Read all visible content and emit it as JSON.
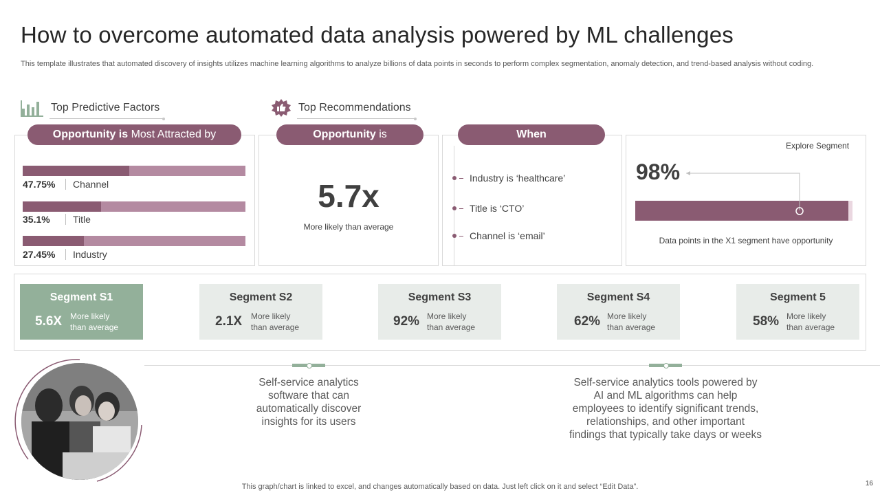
{
  "title": "How to overcome automated data analysis powered by ML challenges",
  "description": "This template illustrates that automated discovery of insights utilizes machine learning algorithms to analyze billions of data points in seconds to perform complex segmentation, anomaly detection, and trend-based analysis without coding.",
  "sections": {
    "predictive": {
      "label": "Top Predictive Factors",
      "icon": "bar-chart-icon"
    },
    "recommendations": {
      "label": "Top Recommendations",
      "icon": "thumbs-up-badge-icon"
    }
  },
  "panels": {
    "attracted": {
      "pill_bold": "Opportunity is",
      "pill_rest": " Most Attracted by",
      "factors": [
        {
          "pct": "47.75%",
          "label": "Channel",
          "value": 47.75
        },
        {
          "pct": "35.1%",
          "label": "Title",
          "value": 35.1
        },
        {
          "pct": "27.45%",
          "label": "Industry",
          "value": 27.45
        }
      ]
    },
    "opportunity": {
      "pill_bold": "Opportunity",
      "pill_rest": " is",
      "value": "5.7x",
      "caption": "More likely than average"
    },
    "when": {
      "pill": "When",
      "items": [
        "Industry is ‘healthcare’",
        "Title is ‘CTO’",
        "Channel is ‘email’"
      ]
    },
    "explore": {
      "link": "Explore Segment",
      "value": "98%",
      "fill": 0.98,
      "caption": "Data points in the X1 segment have opportunity"
    }
  },
  "segments": [
    {
      "name": "Segment S1",
      "value": "5.6X",
      "sub1": "More likely",
      "sub2": "than average",
      "active": true
    },
    {
      "name": "Segment S2",
      "value": "2.1X",
      "sub1": "More likely",
      "sub2": "than average",
      "active": false
    },
    {
      "name": "Segment S3",
      "value": "92%",
      "sub1": "More likely",
      "sub2": "than average",
      "active": false
    },
    {
      "name": "Segment S4",
      "value": "62%",
      "sub1": "More likely",
      "sub2": "than average",
      "active": false
    },
    {
      "name": "Segment 5",
      "value": "58%",
      "sub1": "More likely",
      "sub2": "than average",
      "active": false
    }
  ],
  "notes": {
    "left": [
      "Self-service analytics",
      "software that can",
      "automatically discover",
      "insights for its users"
    ],
    "right": [
      "Self-service analytics tools powered by",
      "AI and ML algorithms can help",
      "employees to identify significant trends,",
      "relationships, and other important",
      "findings that typically take days or weeks"
    ]
  },
  "footer": "This graph/chart is linked to excel,  and changes automatically based on data. Just left click on it and select “Edit Data”.",
  "page_number": "16",
  "colors": {
    "primary": "#8a5b72",
    "primary_light": "#b48aa1",
    "accent": "#93b09a",
    "segment_bg": "#e8ece9"
  }
}
